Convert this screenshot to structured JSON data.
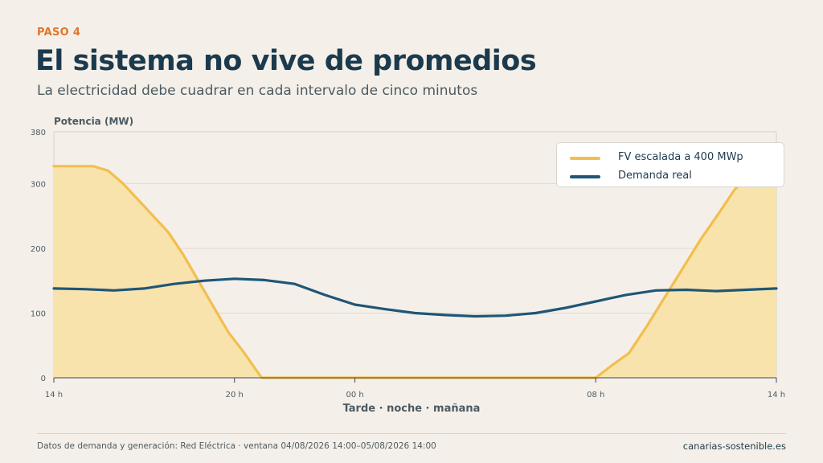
{
  "header": {
    "step": "PASO 4",
    "title": "El sistema no vive de promedios",
    "subtitle": "La electricidad debe cuadrar en cada intervalo de cinco minutos"
  },
  "footer": {
    "source": "Datos de demanda y generación: Red Eléctrica · ventana 04/08/2026 14:00–05/08/2026 14:00",
    "site": "canarias-sostenible.es"
  },
  "colors": {
    "pv_line": "#f2be4e",
    "pv_fill": "#f9e3ad",
    "demand_line": "#1f5677",
    "accent": "#e0762b"
  },
  "chart_data": {
    "type": "line",
    "ylabel": "Potencia (MW)",
    "xlabel": "Tarde · noche · mañana",
    "ylim": [
      0,
      380
    ],
    "yticks": [
      0,
      100,
      200,
      300,
      380
    ],
    "xlim": [
      0,
      24
    ],
    "xticks": [
      {
        "value": 0,
        "label": "14 h"
      },
      {
        "value": 6,
        "label": "20 h"
      },
      {
        "value": 10,
        "label": "00 h"
      },
      {
        "value": 18,
        "label": "08 h"
      },
      {
        "value": 24,
        "label": "14 h"
      }
    ],
    "grid": true,
    "legend_position": "top-right",
    "series": [
      {
        "name": "FV escalada a 400 MWp",
        "style": "area",
        "points": [
          [
            0,
            327
          ],
          [
            1.3,
            327
          ],
          [
            1.8,
            320
          ],
          [
            2.3,
            300
          ],
          [
            2.8,
            275
          ],
          [
            3.3,
            250
          ],
          [
            3.8,
            225
          ],
          [
            4.3,
            190
          ],
          [
            4.8,
            150
          ],
          [
            5.3,
            110
          ],
          [
            5.8,
            70
          ],
          [
            6.3,
            40
          ],
          [
            6.9,
            0
          ],
          [
            18,
            0
          ],
          [
            18.5,
            18
          ],
          [
            19.1,
            38
          ],
          [
            19.7,
            80
          ],
          [
            20.3,
            125
          ],
          [
            20.9,
            170
          ],
          [
            21.5,
            215
          ],
          [
            22.1,
            255
          ],
          [
            22.6,
            290
          ],
          [
            23.1,
            315
          ],
          [
            23.6,
            345
          ],
          [
            24,
            348
          ]
        ]
      },
      {
        "name": "Demanda real",
        "style": "line",
        "points": [
          [
            0,
            138
          ],
          [
            1,
            137
          ],
          [
            2,
            135
          ],
          [
            3,
            138
          ],
          [
            4,
            145
          ],
          [
            5,
            150
          ],
          [
            6,
            153
          ],
          [
            7,
            151
          ],
          [
            8,
            145
          ],
          [
            9,
            128
          ],
          [
            10,
            113
          ],
          [
            11,
            106
          ],
          [
            12,
            100
          ],
          [
            13,
            97
          ],
          [
            14,
            95
          ],
          [
            15,
            96
          ],
          [
            16,
            100
          ],
          [
            17,
            108
          ],
          [
            18,
            118
          ],
          [
            19,
            128
          ],
          [
            20,
            135
          ],
          [
            21,
            136
          ],
          [
            22,
            134
          ],
          [
            23,
            136
          ],
          [
            24,
            138
          ]
        ]
      }
    ]
  }
}
